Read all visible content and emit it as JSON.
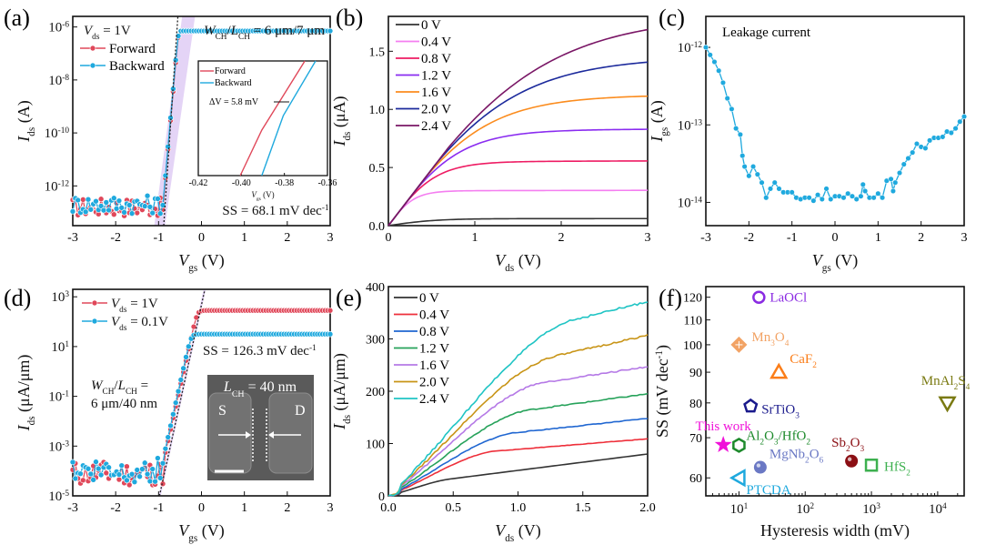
{
  "chart_data": [
    {
      "id": "a",
      "type": "scatter",
      "panel_label": "(a)",
      "xlabel": "V_gs (V)",
      "ylabel": "I_ds (A)",
      "xlim": [
        -3,
        3
      ],
      "yscale": "log",
      "ylim_exp": [
        -13.5,
        -5.6
      ],
      "xticks": [
        "-3",
        "-2",
        "-1",
        "0",
        "1",
        "2",
        "3"
      ],
      "yticks": [
        {
          "exp": -12,
          "label": "10-12"
        },
        {
          "exp": -10,
          "label": "10-10"
        },
        {
          "exp": -8,
          "label": "10-8"
        },
        {
          "exp": -6,
          "label": "10-6"
        }
      ],
      "annotations": {
        "vds": "V_ds = 1V",
        "ratio": "W_CH/L_CH = 6 μm/7 μm",
        "ss": "SS = 68.1 mV dec^-1"
      },
      "legend": {
        "placement": "top-left",
        "entries": [
          "Forward",
          "Backward"
        ]
      },
      "series": [
        {
          "name": "Forward",
          "color": "#e0485a",
          "noise_floor_exp": -12.8,
          "vth": -0.83,
          "ss_mv_dec": 68.1,
          "sat_exp": -6.15
        },
        {
          "name": "Backward",
          "color": "#1fa9de",
          "noise_floor_exp": -12.7,
          "vth": -0.83,
          "ss_mv_dec": 68.1,
          "sat_exp": -6.15
        }
      ],
      "inset": {
        "xlabel": "V_gs (V)",
        "xlim": [
          -0.42,
          -0.36
        ],
        "xticks": [
          "-0.42",
          "-0.40",
          "-0.38",
          "-0.36"
        ],
        "legend": [
          "Forward",
          "Backward"
        ],
        "annotation": "ΔV = 5.8 mV",
        "forward_x": [
          -0.4005,
          -0.3905,
          -0.3705
        ],
        "backward_x": [
          -0.3905,
          -0.3805,
          -0.3655
        ]
      }
    },
    {
      "id": "b",
      "type": "line",
      "panel_label": "(b)",
      "xlabel": "V_ds (V)",
      "ylabel": "I_ds (μA)",
      "xlim": [
        0,
        3
      ],
      "ylim": [
        0,
        1.8
      ],
      "xticks": [
        "0",
        "1",
        "2",
        "3"
      ],
      "yticks": [
        "0.0",
        "0.5",
        "1.0",
        "1.5"
      ],
      "legend": {
        "placement": "top-left"
      },
      "series": [
        {
          "name": "0 V",
          "color": "#333333",
          "sat": 0.06,
          "vsat": 0.7
        },
        {
          "name": "0.4 V",
          "color": "#f47ef0",
          "sat": 0.3,
          "vsat": 0.35
        },
        {
          "name": "0.8 V",
          "color": "#ee1c63",
          "sat": 0.55,
          "vsat": 0.55
        },
        {
          "name": "1.2 V",
          "color": "#8a2cf0",
          "sat": 0.82,
          "vsat": 0.85
        },
        {
          "name": "1.6 V",
          "color": "#fb8c1e",
          "sat": 1.11,
          "vsat": 1.15
        },
        {
          "name": "2.0 V",
          "color": "#1c2a9c",
          "sat": 1.43,
          "vsat": 1.5
        },
        {
          "name": "2.4 V",
          "color": "#7a1766",
          "sat": 1.78,
          "vsat": 1.9
        }
      ]
    },
    {
      "id": "c",
      "type": "scatter",
      "panel_label": "(c)",
      "xlabel": "V_gs (V)",
      "ylabel": "I_gs (A)",
      "xlim": [
        -3,
        3
      ],
      "yscale": "log",
      "ylim_exp": [
        -14.3,
        -11.6
      ],
      "xticks": [
        "-3",
        "-2",
        "-1",
        "0",
        "1",
        "2",
        "3"
      ],
      "yticks": [
        {
          "exp": -14,
          "label": "10-14"
        },
        {
          "exp": -13,
          "label": "10-13"
        },
        {
          "exp": -12,
          "label": "10-12"
        }
      ],
      "annotation": "Leakage current",
      "series": [
        {
          "name": "I_gs",
          "color": "#1fa9de",
          "points": [
            [
              -3,
              1e-12
            ],
            [
              -2.9,
              8e-13
            ],
            [
              -2.8,
              6.5e-13
            ],
            [
              -2.7,
              5e-13
            ],
            [
              -2.6,
              3.5e-13
            ],
            [
              -2.5,
              2.2e-13
            ],
            [
              -2.4,
              1.6e-13
            ],
            [
              -2.3,
              9e-14
            ],
            [
              -2.2,
              7.5e-14
            ],
            [
              -2.15,
              4e-14
            ],
            [
              -2.1,
              2.9e-14
            ],
            [
              -2.0,
              2.2e-14
            ],
            [
              -1.9,
              2.9e-14
            ],
            [
              -1.8,
              2.3e-14
            ],
            [
              -1.7,
              1.8e-14
            ],
            [
              -1.6,
              1.15e-14
            ],
            [
              -1.5,
              1.5e-14
            ],
            [
              -1.4,
              1.8e-14
            ],
            [
              -1.3,
              1.5e-14
            ],
            [
              -1.2,
              1.35e-14
            ],
            [
              -1.1,
              1.35e-14
            ],
            [
              -1.0,
              1.35e-14
            ],
            [
              -0.9,
              1.15e-14
            ],
            [
              -0.8,
              1.1e-14
            ],
            [
              -0.7,
              1.15e-14
            ],
            [
              -0.6,
              1.15e-14
            ],
            [
              -0.5,
              1.05e-14
            ],
            [
              -0.4,
              1.25e-14
            ],
            [
              -0.3,
              1.1e-14
            ],
            [
              -0.2,
              1.5e-14
            ],
            [
              -0.1,
              1.1e-14
            ],
            [
              0,
              1.2e-14
            ],
            [
              0.1,
              1.2e-14
            ],
            [
              0.2,
              1.15e-14
            ],
            [
              0.3,
              1.3e-14
            ],
            [
              0.4,
              1.2e-14
            ],
            [
              0.5,
              1.1e-14
            ],
            [
              0.6,
              1.2e-14
            ],
            [
              0.65,
              1.7e-14
            ],
            [
              0.7,
              1.4e-14
            ],
            [
              0.8,
              1.15e-14
            ],
            [
              0.9,
              1.15e-14
            ],
            [
              1.0,
              1.3e-14
            ],
            [
              1.1,
              1.15e-14
            ],
            [
              1.2,
              1.9e-14
            ],
            [
              1.3,
              2e-14
            ],
            [
              1.35,
              1.4e-14
            ],
            [
              1.4,
              1.8e-14
            ],
            [
              1.5,
              2.4e-14
            ],
            [
              1.6,
              3.1e-14
            ],
            [
              1.7,
              3.7e-14
            ],
            [
              1.8,
              4.4e-14
            ],
            [
              1.9,
              5.7e-14
            ],
            [
              2.0,
              5.2e-14
            ],
            [
              2.1,
              5e-14
            ],
            [
              2.2,
              6.3e-14
            ],
            [
              2.3,
              6.8e-14
            ],
            [
              2.4,
              6.8e-14
            ],
            [
              2.5,
              7e-14
            ],
            [
              2.6,
              8.2e-14
            ],
            [
              2.7,
              7.9e-14
            ],
            [
              2.8,
              9e-14
            ],
            [
              2.9,
              1.1e-13
            ],
            [
              3.0,
              1.28e-13
            ]
          ]
        }
      ]
    },
    {
      "id": "d",
      "type": "scatter",
      "panel_label": "(d)",
      "xlabel": "V_gs (V)",
      "ylabel": "I_ds (μA/μm)",
      "xlim": [
        -3,
        3
      ],
      "yscale": "log",
      "ylim_exp": [
        -5,
        3.3
      ],
      "xticks": [
        "-3",
        "-2",
        "-1",
        "0",
        "1",
        "2",
        "3"
      ],
      "yticks": [
        {
          "exp": -5,
          "label": "10-5"
        },
        {
          "exp": -3,
          "label": "10-3"
        },
        {
          "exp": -1,
          "label": "10-1"
        },
        {
          "exp": 1,
          "label": "101"
        },
        {
          "exp": 3,
          "label": "103"
        }
      ],
      "annotations": {
        "ss": "SS = 126.3 mV dec^-1",
        "ratio_line1": "W_CH/L_CH =",
        "ratio_line2": "6 μm/40 nm",
        "inset_lch": "L_CH = 40 nm",
        "inset_s": "S",
        "inset_d": "D"
      },
      "legend": {
        "placement": "top-left",
        "entries": [
          "V_ds = 1V",
          "V_ds = 0.1V"
        ]
      },
      "series": [
        {
          "name": "V_ds = 1V",
          "color": "#e0485a",
          "noise_floor_exp": -4.1,
          "sat_exp": 2.45
        },
        {
          "name": "V_ds = 0.1V",
          "color": "#1fa9de",
          "noise_floor_exp": -3.95,
          "sat_exp": 1.5
        }
      ]
    },
    {
      "id": "e",
      "type": "line",
      "panel_label": "(e)",
      "xlabel": "V_ds (V)",
      "ylabel": "I_ds (μA/μm)",
      "xlim": [
        0,
        2
      ],
      "ylim": [
        0,
        400
      ],
      "xticks": [
        "0.0",
        "0.5",
        "1.0",
        "1.5",
        "2.0"
      ],
      "yticks": [
        "0",
        "100",
        "200",
        "300",
        "400"
      ],
      "legend": {
        "placement": "top-left"
      },
      "series": [
        {
          "name": "0 V",
          "color": "#333333",
          "end": 80,
          "knee": 0.5,
          "knee_val": 33
        },
        {
          "name": "0.4 V",
          "color": "#ee2f3a",
          "end": 109,
          "knee": 0.8,
          "knee_val": 85
        },
        {
          "name": "0.8 V",
          "color": "#1f66d1",
          "end": 148,
          "knee": 0.95,
          "knee_val": 120
        },
        {
          "name": "1.2 V",
          "color": "#26a25a",
          "end": 195,
          "knee": 1.05,
          "knee_val": 163
        },
        {
          "name": "1.6 V",
          "color": "#b579e6",
          "end": 247,
          "knee": 1.15,
          "knee_val": 215
        },
        {
          "name": "2.0 V",
          "color": "#c89416",
          "end": 307,
          "knee": 1.25,
          "knee_val": 265
        },
        {
          "name": "2.4 V",
          "color": "#1fc4c4",
          "end": 371,
          "knee": 1.4,
          "knee_val": 335
        }
      ]
    },
    {
      "id": "f",
      "type": "scatter",
      "panel_label": "(f)",
      "xlabel": "Hysteresis width (mV)",
      "ylabel": "SS (mV dec^-1)",
      "xscale": "log",
      "xlim_exp": [
        0.5,
        4.4
      ],
      "ylim": [
        56,
        125
      ],
      "xticks": [
        {
          "exp": 1,
          "label": "101"
        },
        {
          "exp": 2,
          "label": "102"
        },
        {
          "exp": 3,
          "label": "103"
        },
        {
          "exp": 4,
          "label": "104"
        }
      ],
      "yticks": [
        "60",
        "70",
        "80",
        "90",
        "100",
        "110",
        "120"
      ],
      "points": [
        {
          "name": "LaOCl",
          "x": 20,
          "y": 120,
          "marker": "circle-open",
          "color": "#8a2be2"
        },
        {
          "name": "Mn3O4",
          "x": 10,
          "y": 100,
          "marker": "diamond-cross",
          "color": "#f2a365"
        },
        {
          "name": "CaF2",
          "x": 40,
          "y": 90,
          "marker": "triangle-up-open",
          "color": "#fb7d18"
        },
        {
          "name": "MnAl2S4",
          "x": 14000,
          "y": 80,
          "marker": "triangle-down-open",
          "color": "#7a7a12"
        },
        {
          "name": "SrTiO3",
          "x": 15,
          "y": 79,
          "marker": "pentagon-open",
          "color": "#1a1a8c"
        },
        {
          "name": "This work",
          "x": 5.8,
          "y": 68.1,
          "marker": "star",
          "color": "#f012d9"
        },
        {
          "name": "Al2O3/HfO2",
          "x": 10,
          "y": 68,
          "marker": "hexagon-open",
          "color": "#1e8a2c"
        },
        {
          "name": "Sb2O3",
          "x": 500,
          "y": 64,
          "marker": "sphere",
          "color": "#8b0f14"
        },
        {
          "name": "HfS2",
          "x": 1000,
          "y": 63,
          "marker": "square-open",
          "color": "#3db04f"
        },
        {
          "name": "MgNb2O6",
          "x": 21,
          "y": 62.5,
          "marker": "sphere",
          "color": "#6a78c4"
        },
        {
          "name": "PTCDA",
          "x": 10,
          "y": 60,
          "marker": "triangle-left-open",
          "color": "#1fa9de"
        }
      ]
    }
  ]
}
